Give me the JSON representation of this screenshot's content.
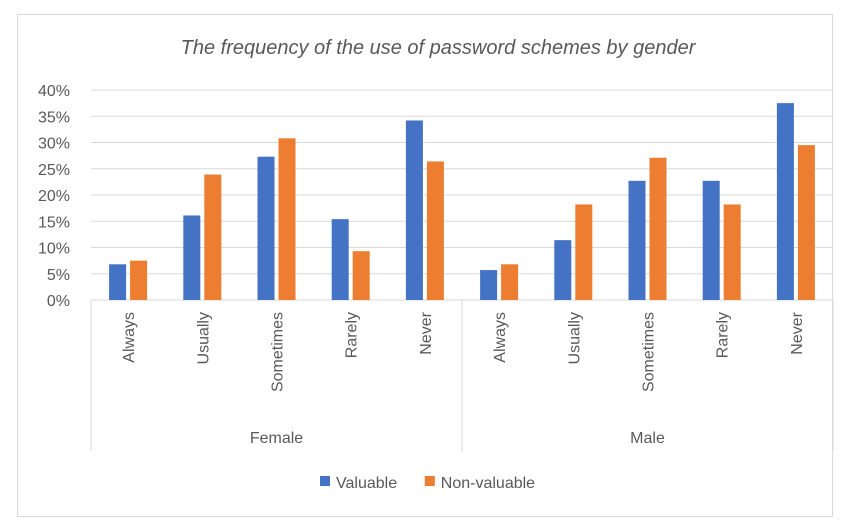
{
  "chart_data": {
    "type": "bar",
    "title": "The frequency of the use of password schemes by gender",
    "xlabel": "",
    "ylabel": "",
    "ylim": [
      0,
      0.4
    ],
    "yticks": [
      "0%",
      "5%",
      "10%",
      "15%",
      "20%",
      "25%",
      "30%",
      "35%",
      "40%"
    ],
    "grid": true,
    "legend_position": "bottom",
    "groups": [
      {
        "label": "Female",
        "categories": [
          "Always",
          "Usually",
          "Sometimes",
          "Rarely",
          "Never"
        ]
      },
      {
        "label": "Male",
        "categories": [
          "Always",
          "Usually",
          "Sometimes",
          "Rarely",
          "Never"
        ]
      }
    ],
    "series": [
      {
        "name": "Valuable",
        "color": "#4472c4",
        "values": [
          0.068,
          0.161,
          0.273,
          0.154,
          0.342,
          0.057,
          0.114,
          0.227,
          0.227,
          0.375
        ]
      },
      {
        "name": "Non-valuable",
        "color": "#ed7d31",
        "values": [
          0.075,
          0.239,
          0.308,
          0.093,
          0.264,
          0.068,
          0.182,
          0.271,
          0.182,
          0.295
        ]
      }
    ]
  }
}
